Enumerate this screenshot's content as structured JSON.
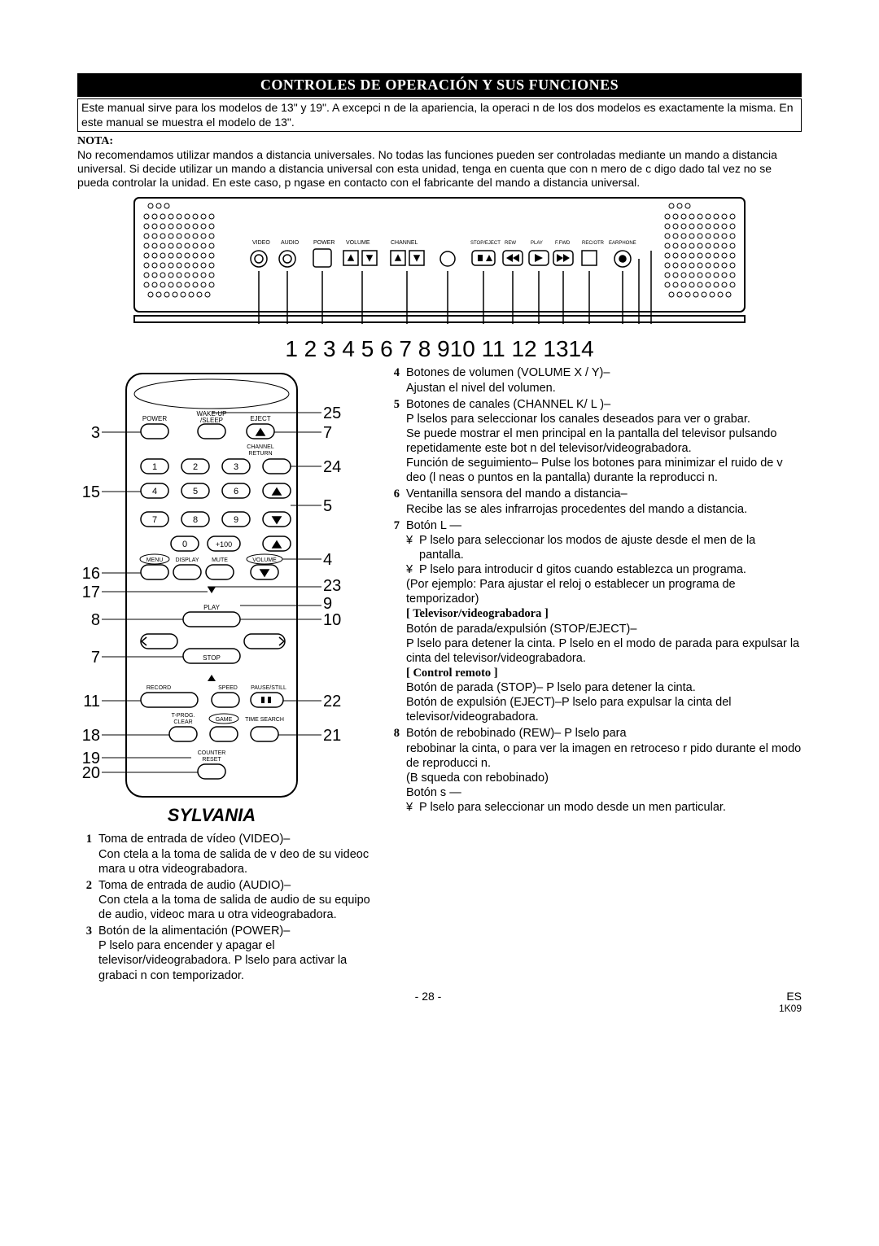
{
  "title": "CONTROLES DE OPERACIÓN Y SUS FUNCIONES",
  "intro": "Este manual sirve para los modelos de 13\" y 19\". A excepci n de la apariencia, la operaci n de los dos modelos es exactamente la misma. En este manual se muestra el modelo de 13\".",
  "nota_label": "NOTA:",
  "nota_text": "No recomendamos utilizar mandos a distancia universales. No todas las funciones pueden ser controladas mediante un mando a distancia universal. Si decide utilizar un mando a distancia universal con esta unidad, tenga en cuenta que con n mero de c digo dado tal vez no se pueda controlar la unidad. En este caso, p ngase en contacto con el fabricante del mando a distancia universal.",
  "top_numbers": "1  2    3    4    5    6   7 8 910 11 12 1314",
  "remote_left_nums": [
    "3",
    "15",
    "16",
    "17",
    "8",
    "7",
    "11",
    "18",
    "19",
    "20"
  ],
  "remote_right_nums": [
    "25",
    "7",
    "24",
    "5",
    "4",
    "23",
    "9",
    "10",
    "22",
    "21"
  ],
  "remote_labels": {
    "power": "POWER",
    "wake": "WAKE-UP\n/SLEEP",
    "eject": "EJECT",
    "chret": "CHANNEL\nRETURN",
    "channel": "CHANNEL",
    "menu": "MENU",
    "display": "DISPLAY",
    "mute": "MUTE",
    "volume": "VOLUME",
    "play": "PLAY",
    "rew": "REW",
    "ffwd": "F.FWD",
    "stop": "STOP",
    "record": "RECORD",
    "speed": "SPEED",
    "pause": "PAUSE/STILL",
    "tprog": "T-PROG.\nCLEAR",
    "game": "GAME",
    "tsearch": "TIME SEARCH",
    "counter": "COUNTER\nRESET"
  },
  "brand": "SYLVANIA",
  "left_items": [
    {
      "n": "1",
      "title": "Toma de entrada de vídeo (VIDEO)–",
      "body": "Con ctela a la toma de salida de v deo de su videoc mara u otra videograbadora."
    },
    {
      "n": "2",
      "title": "Toma de entrada de audio (AUDIO)–",
      "body": "Con ctela a la toma de salida de audio de su equipo de audio, videoc mara u otra videograbadora."
    },
    {
      "n": "3",
      "title": "Botón de la alimentación (POWER)–",
      "body": "P lselo para encender y apagar el televisor/videograbadora. P lselo para activar la grabaci n con temporizador."
    }
  ],
  "right_items": [
    {
      "n": "4",
      "lines": [
        {
          "t": "title",
          "text": "Botones de volumen (VOLUME  X / Y)–"
        },
        {
          "t": "plain",
          "text": "Ajustan el nivel del volumen."
        }
      ]
    },
    {
      "n": "5",
      "lines": [
        {
          "t": "title",
          "text": "Botones de canales (CHANNEL  K/ L )–"
        },
        {
          "t": "plain",
          "text": "P lselos para seleccionar los canales deseados para ver o grabar."
        },
        {
          "t": "plain",
          "text": "Se puede mostrar el men  principal en la pantalla del televisor pulsando repetidamente este bot n del televisor/videograbadora."
        },
        {
          "t": "plain",
          "text": "Función de seguimiento– Pulse los botones para minimizar el ruido de v deo (l neas o puntos en la pantalla) durante la reproducci n."
        }
      ]
    },
    {
      "n": "6",
      "lines": [
        {
          "t": "title",
          "text": "Ventanilla sensora del mando a distancia–"
        },
        {
          "t": "plain",
          "text": "Recibe las se ales infrarrojas procedentes del mando a distancia."
        }
      ]
    },
    {
      "n": "7",
      "lines": [
        {
          "t": "title",
          "text": "Botón L —"
        },
        {
          "t": "bullet",
          "text": "P lselo para seleccionar los modos de ajuste desde el men de la pantalla."
        },
        {
          "t": "bullet",
          "text": "P lselo para introducir d gitos cuando establezca un  programa."
        },
        {
          "t": "plain",
          "text": "(Por ejemplo: Para ajustar el reloj o establecer un programa de temporizador)"
        },
        {
          "t": "sub",
          "text": "[ Televisor/videograbadora ]"
        },
        {
          "t": "plain",
          "text": "Botón de parada/expulsión (STOP/EJECT)–"
        },
        {
          "t": "plain",
          "text": "P lselo para detener la cinta. P lselo en el modo de parada para expulsar la cinta del televisor/videograbadora."
        },
        {
          "t": "sub",
          "text": "[ Control remoto ]"
        },
        {
          "t": "plain",
          "text": "Botón de parada (STOP)– P lselo para detener la cinta."
        },
        {
          "t": "plain",
          "text": "Botón de expulsión (EJECT)–P lselo para expulsar la cinta del televisor/videograbadora."
        }
      ]
    },
    {
      "n": "8",
      "lines": [
        {
          "t": "title",
          "text": "Botón de rebobinado (REW)– P lselo para"
        },
        {
          "t": "plain",
          "text": "rebobinar la cinta, o para ver la imagen en retroceso r pido durante el modo de reproducci n."
        },
        {
          "t": "plain",
          "text": "(B squeda con rebobinado)"
        },
        {
          "t": "plain",
          "text": "Botón s —"
        },
        {
          "t": "bullet",
          "text": "P lselo para seleccionar un modo desde un men particular."
        }
      ]
    }
  ],
  "footer_page": "- 28 -",
  "footer_es": "ES",
  "footer_code": "1K09"
}
